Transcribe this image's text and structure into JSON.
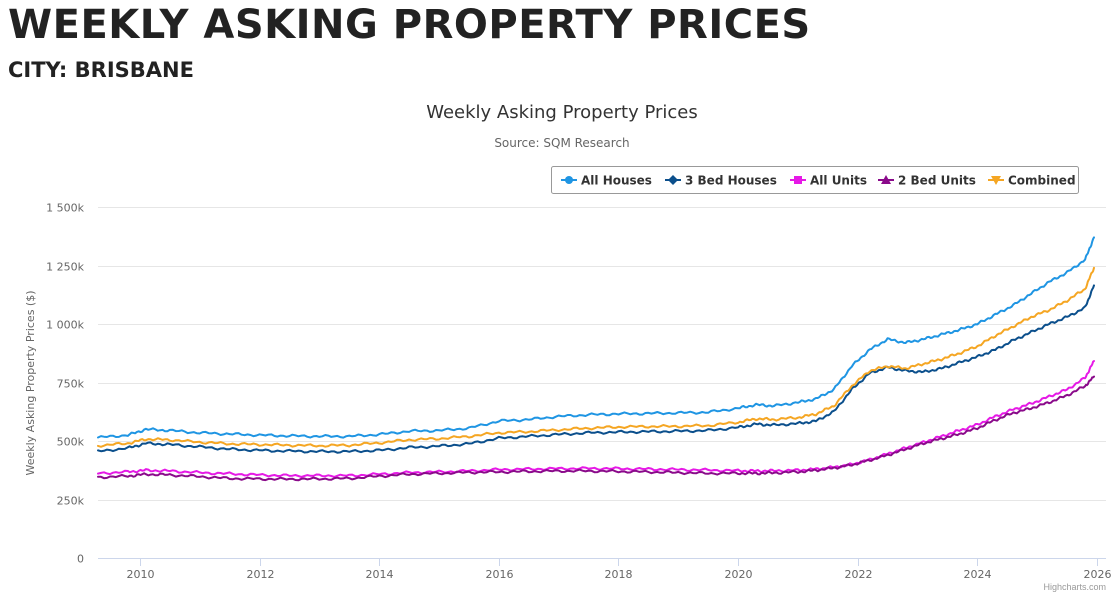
{
  "page": {
    "title": "WEEKLY ASKING PROPERTY PRICES",
    "city_label": "CITY: BRISBANE"
  },
  "chart_data": {
    "type": "line",
    "title": "Weekly Asking Property Prices",
    "subtitle": "Source: SQM Research",
    "ylabel": "Weekly Asking Property Prices ($)",
    "xlabel": "",
    "ylim": [
      0,
      1500000
    ],
    "xlim": [
      2009.3,
      2026.15
    ],
    "x_ticks": [
      2010,
      2012,
      2014,
      2016,
      2018,
      2020,
      2022,
      2024,
      2026
    ],
    "x_tick_labels": [
      "2010",
      "2012",
      "2014",
      "2016",
      "2018",
      "2020",
      "2022",
      "2024",
      "2026"
    ],
    "y_ticks": [
      0,
      250000,
      500000,
      750000,
      1000000,
      1250000,
      1500000
    ],
    "y_tick_labels": [
      "0",
      "250k",
      "500k",
      "750k",
      "1 000k",
      "1 250k",
      "1 500k"
    ],
    "grid": "horizontal",
    "legend_position": "top-right",
    "credits": "Highcharts.com",
    "series": [
      {
        "name": "All Houses",
        "color": "#1f95e3",
        "x": [
          2009.3,
          2009.8,
          2010.1,
          2010.5,
          2011.0,
          2011.5,
          2012.0,
          2012.5,
          2013.0,
          2013.5,
          2014.0,
          2014.5,
          2015.0,
          2015.5,
          2016.0,
          2016.5,
          2017.0,
          2017.5,
          2018.0,
          2018.5,
          2019.0,
          2019.5,
          2020.0,
          2020.3,
          2020.6,
          2021.0,
          2021.3,
          2021.6,
          2021.9,
          2022.2,
          2022.5,
          2022.8,
          2023.1,
          2023.4,
          2023.7,
          2024.0,
          2024.3,
          2024.6,
          2024.9,
          2025.2,
          2025.5,
          2025.8,
          2025.95
        ],
        "y": [
          515000,
          525000,
          550000,
          545000,
          535000,
          530000,
          525000,
          522000,
          520000,
          520000,
          528000,
          542000,
          545000,
          555000,
          585000,
          592000,
          605000,
          612000,
          616000,
          618000,
          620000,
          623000,
          640000,
          655000,
          650000,
          665000,
          680000,
          720000,
          820000,
          890000,
          935000,
          920000,
          935000,
          955000,
          975000,
          1000000,
          1040000,
          1080000,
          1130000,
          1180000,
          1220000,
          1275000,
          1370000
        ]
      },
      {
        "name": "3 Bed Houses",
        "color": "#0b4f8c",
        "x": [
          2009.3,
          2009.8,
          2010.1,
          2010.5,
          2011.0,
          2011.5,
          2012.0,
          2012.5,
          2013.0,
          2013.5,
          2014.0,
          2014.5,
          2015.0,
          2015.5,
          2016.0,
          2016.5,
          2017.0,
          2017.5,
          2018.0,
          2018.5,
          2019.0,
          2019.5,
          2020.0,
          2020.3,
          2020.6,
          2021.0,
          2021.3,
          2021.6,
          2021.9,
          2022.2,
          2022.5,
          2022.8,
          2023.1,
          2023.4,
          2023.7,
          2024.0,
          2024.3,
          2024.6,
          2024.9,
          2025.2,
          2025.5,
          2025.8,
          2025.95
        ],
        "y": [
          455000,
          470000,
          490000,
          485000,
          475000,
          465000,
          460000,
          457000,
          455000,
          455000,
          460000,
          472000,
          478000,
          488000,
          512000,
          520000,
          528000,
          535000,
          538000,
          540000,
          542000,
          545000,
          558000,
          572000,
          568000,
          575000,
          585000,
          625000,
          720000,
          790000,
          815000,
          800000,
          795000,
          810000,
          835000,
          860000,
          890000,
          930000,
          965000,
          1000000,
          1030000,
          1070000,
          1165000
        ]
      },
      {
        "name": "All Units",
        "color": "#e619e6",
        "x": [
          2009.3,
          2009.8,
          2010.1,
          2010.5,
          2011.0,
          2011.5,
          2012.0,
          2012.5,
          2013.0,
          2013.5,
          2014.0,
          2014.5,
          2015.0,
          2015.5,
          2016.0,
          2016.5,
          2017.0,
          2017.5,
          2018.0,
          2018.5,
          2019.0,
          2019.5,
          2020.0,
          2020.3,
          2020.6,
          2021.0,
          2021.3,
          2021.6,
          2021.9,
          2022.2,
          2022.5,
          2022.8,
          2023.1,
          2023.4,
          2023.7,
          2024.0,
          2024.3,
          2024.6,
          2024.9,
          2025.2,
          2025.5,
          2025.8,
          2025.95
        ],
        "y": [
          362000,
          368000,
          375000,
          372000,
          365000,
          360000,
          355000,
          352000,
          352000,
          352000,
          358000,
          365000,
          368000,
          372000,
          378000,
          380000,
          382000,
          383000,
          382000,
          380000,
          378000,
          376000,
          373000,
          372000,
          373000,
          375000,
          380000,
          388000,
          400000,
          420000,
          445000,
          470000,
          495000,
          520000,
          545000,
          570000,
          605000,
          635000,
          660000,
          690000,
          720000,
          770000,
          842000
        ]
      },
      {
        "name": "2 Bed Units",
        "color": "#8a0a8a",
        "x": [
          2009.3,
          2009.8,
          2010.1,
          2010.5,
          2011.0,
          2011.5,
          2012.0,
          2012.5,
          2013.0,
          2013.5,
          2014.0,
          2014.5,
          2015.0,
          2015.5,
          2016.0,
          2016.5,
          2017.0,
          2017.5,
          2018.0,
          2018.5,
          2019.0,
          2019.5,
          2020.0,
          2020.3,
          2020.6,
          2021.0,
          2021.3,
          2021.6,
          2021.9,
          2022.2,
          2022.5,
          2022.8,
          2023.1,
          2023.4,
          2023.7,
          2024.0,
          2024.3,
          2024.6,
          2024.9,
          2025.2,
          2025.5,
          2025.8,
          2025.95
        ],
        "y": [
          345000,
          350000,
          358000,
          355000,
          348000,
          340000,
          338000,
          337000,
          338000,
          340000,
          350000,
          358000,
          362000,
          366000,
          368000,
          370000,
          372000,
          372000,
          370000,
          368000,
          365000,
          362000,
          362000,
          362000,
          364000,
          368000,
          375000,
          385000,
          398000,
          418000,
          440000,
          465000,
          490000,
          510000,
          530000,
          555000,
          590000,
          620000,
          640000,
          665000,
          695000,
          735000,
          775000
        ]
      },
      {
        "name": "Combined",
        "color": "#f5a623",
        "x": [
          2009.3,
          2009.8,
          2010.1,
          2010.5,
          2011.0,
          2011.5,
          2012.0,
          2012.5,
          2013.0,
          2013.5,
          2014.0,
          2014.5,
          2015.0,
          2015.5,
          2016.0,
          2016.5,
          2017.0,
          2017.5,
          2018.0,
          2018.5,
          2019.0,
          2019.5,
          2020.0,
          2020.3,
          2020.6,
          2021.0,
          2021.3,
          2021.6,
          2021.9,
          2022.2,
          2022.5,
          2022.8,
          2023.1,
          2023.4,
          2023.7,
          2024.0,
          2024.3,
          2024.6,
          2024.9,
          2025.2,
          2025.5,
          2025.8,
          2025.95
        ],
        "y": [
          480000,
          490000,
          508000,
          505000,
          495000,
          488000,
          485000,
          482000,
          480000,
          482000,
          492000,
          505000,
          510000,
          520000,
          535000,
          540000,
          548000,
          555000,
          560000,
          562000,
          563000,
          566000,
          580000,
          595000,
          592000,
          600000,
          615000,
          650000,
          735000,
          800000,
          820000,
          810000,
          830000,
          850000,
          875000,
          905000,
          950000,
          990000,
          1030000,
          1060000,
          1100000,
          1150000,
          1240000
        ]
      }
    ]
  }
}
